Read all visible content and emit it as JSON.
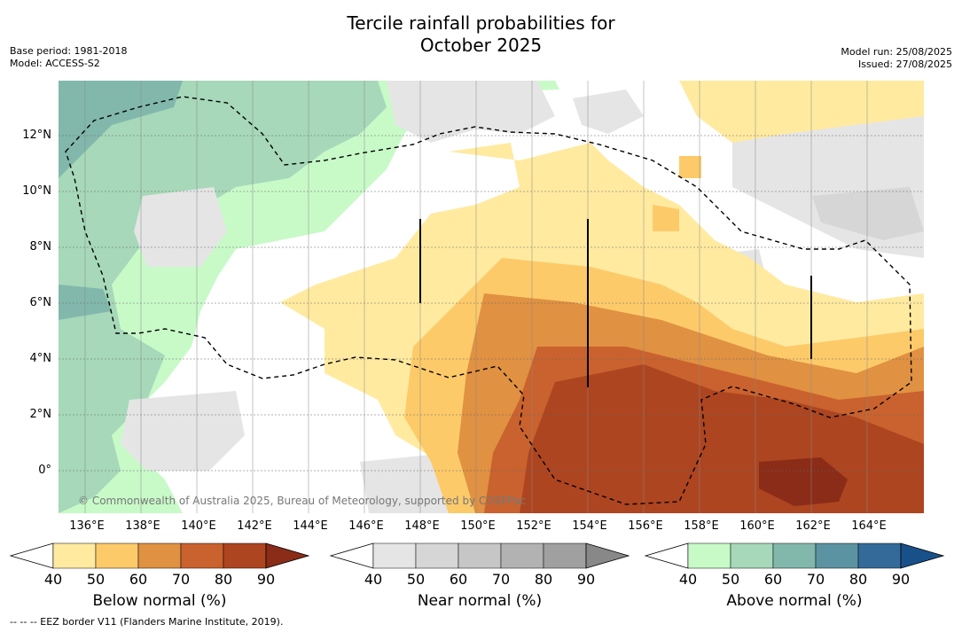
{
  "title_line1": "Tercile rainfall probabilities for",
  "title_line2": "October 2025",
  "base_period": "Base period: 1981-2018",
  "model": "Model: ACCESS-S2",
  "model_run": "Model run: 25/08/2025",
  "issued": "Issued: 27/08/2025",
  "copyright": "© Commonwealth of Australia 2025, Bureau of Meteorology, supported by COSPPac",
  "footer": "-- -- -- EEZ border V11 (Flanders Marine Institute, 2019).",
  "lat_ticks": [
    "12°N",
    "10°N",
    "8°N",
    "6°N",
    "4°N",
    "2°N",
    "0°"
  ],
  "lon_ticks": [
    "136°E",
    "138°E",
    "140°E",
    "142°E",
    "144°E",
    "146°E",
    "148°E",
    "150°E",
    "152°E",
    "154°E",
    "156°E",
    "158°E",
    "160°E",
    "162°E",
    "164°E"
  ],
  "colorbars": [
    {
      "title": "Below normal (%)",
      "ticks": [
        "40",
        "50",
        "60",
        "70",
        "80",
        "90"
      ],
      "colors": [
        "#ffeaa0",
        "#fdca6a",
        "#e09142",
        "#c9622e",
        "#ad4520",
        "#8a2c17"
      ]
    },
    {
      "title": "Near normal (%)",
      "ticks": [
        "40",
        "50",
        "60",
        "70",
        "80",
        "90"
      ],
      "colors": [
        "#e5e5e5",
        "#d6d6d6",
        "#c6c6c6",
        "#b2b2b2",
        "#a0a0a0",
        "#888888"
      ]
    },
    {
      "title": "Above normal (%)",
      "ticks": [
        "40",
        "50",
        "60",
        "70",
        "80",
        "90"
      ],
      "colors": [
        "#c8fac8",
        "#a6d8b9",
        "#82b8ac",
        "#5b93a2",
        "#336a9a",
        "#18508a"
      ]
    }
  ]
}
